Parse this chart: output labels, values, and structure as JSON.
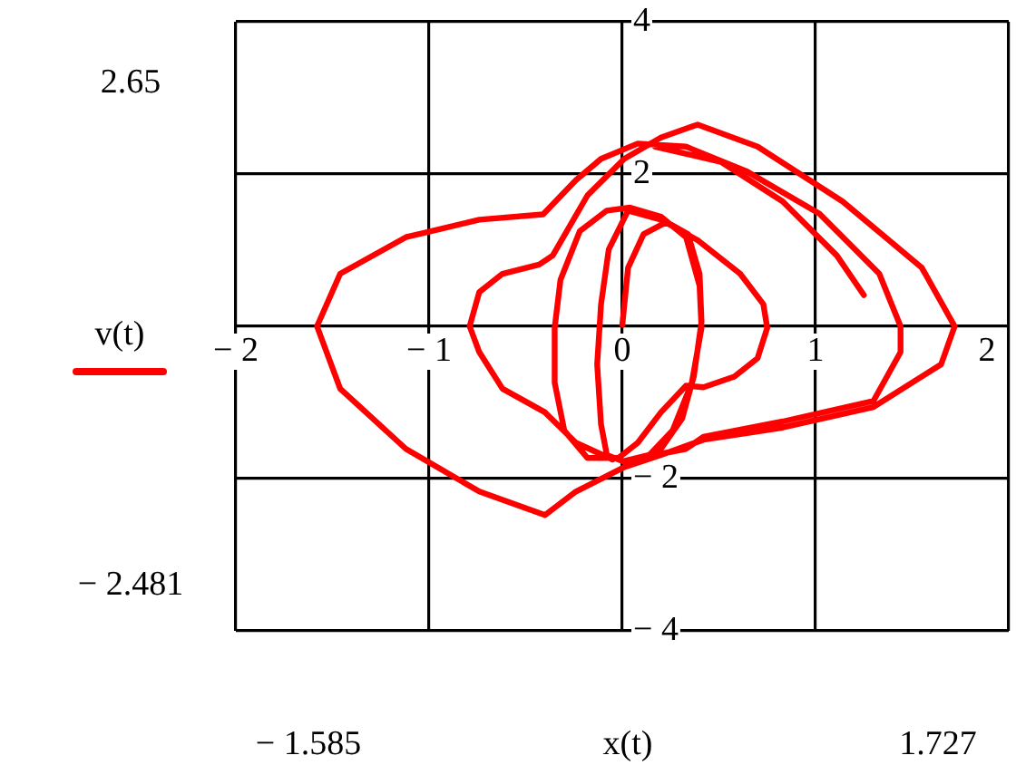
{
  "chart_data": {
    "type": "line",
    "xlabel": "x(t)",
    "ylabel": "v(t)",
    "annotations": [
      "2.65",
      "− 2.481",
      "− 1.585",
      "1.727"
    ],
    "xlim": [
      -2,
      2
    ],
    "xticks": [
      -2,
      -1,
      0,
      1,
      2
    ],
    "ylim": [
      -4,
      4
    ],
    "yticks": [
      -4,
      -2,
      {
        "value": 0,
        "label": null
      },
      2,
      4
    ],
    "grid": true,
    "marker": "none",
    "line_style": "solid",
    "legend": false,
    "series": [
      {
        "color": "#ff0000",
        "x": [
          0,
          0.03,
          0.11,
          0.23,
          0.34,
          0.4,
          0.41,
          0.37,
          0.31,
          0.2,
          0.04,
          -0.08,
          -0.11,
          -0.13,
          -0.11,
          -0.07,
          0.03,
          0.2,
          0.39,
          0.61,
          0.73,
          0.75,
          0.7,
          0.58,
          0.42,
          0.33,
          0.2,
          0.08,
          -0.02,
          -0.18,
          -0.3,
          -0.35,
          -0.35,
          -0.32,
          -0.22,
          -0.08,
          0.04,
          0.2,
          0.33,
          0.4,
          0.41,
          0.36,
          0.26,
          0.14,
          0.01,
          0.33,
          0.42,
          0.83,
          1.3,
          1.44,
          1.44,
          1.33,
          1.02,
          0.64,
          0.33,
          0.08,
          -0.11,
          -0.24,
          -0.41,
          -0.74,
          -1.12,
          -1.46,
          -1.58,
          -1.46,
          -1.12,
          -0.74,
          -0.4,
          -0.24,
          0.01,
          0.2,
          0.42,
          0.83,
          1.3,
          1.65,
          1.72,
          1.55,
          1.14,
          0.7,
          0.39,
          0.2,
          0.01,
          -0.18,
          -0.36,
          -0.43,
          -0.62,
          -0.74,
          -0.79,
          -0.74,
          -0.62,
          -0.4,
          -0.24,
          -0.05,
          null,
          0.17,
          0.51,
          0.83,
          1.11,
          1.25
        ],
        "values": [
          0.02,
          0.77,
          1.21,
          1.37,
          1.21,
          0.69,
          0.06,
          -0.66,
          -1.21,
          -1.61,
          -1.81,
          -1.69,
          -1.29,
          -0.5,
          0.29,
          1.01,
          1.52,
          1.4,
          1.13,
          0.69,
          0.29,
          -0.02,
          -0.42,
          -0.66,
          -0.8,
          -0.78,
          -1.13,
          -1.53,
          -1.73,
          -1.73,
          -1.37,
          -0.74,
          -0.02,
          0.61,
          1.25,
          1.52,
          1.56,
          1.44,
          1.17,
          0.53,
          -0.02,
          -0.74,
          -1.37,
          -1.69,
          -1.77,
          -1.61,
          -1.45,
          -1.25,
          -0.98,
          -0.34,
          0,
          0.69,
          1.48,
          2.04,
          2.36,
          2.4,
          2.2,
          1.92,
          1.47,
          1.4,
          1.17,
          0.69,
          0,
          -0.82,
          -1.61,
          -2.17,
          -2.48,
          -2.17,
          -1.85,
          -1.69,
          -1.49,
          -1.33,
          -1.06,
          -0.5,
          0,
          0.77,
          1.64,
          2.36,
          2.65,
          2.48,
          2.2,
          1.72,
          0.93,
          0.81,
          0.69,
          0.45,
          0,
          -0.34,
          -0.82,
          -1.13,
          -1.53,
          -1.75,
          null,
          2.36,
          2.16,
          1.64,
          0.93,
          0.41
        ]
      }
    ]
  }
}
